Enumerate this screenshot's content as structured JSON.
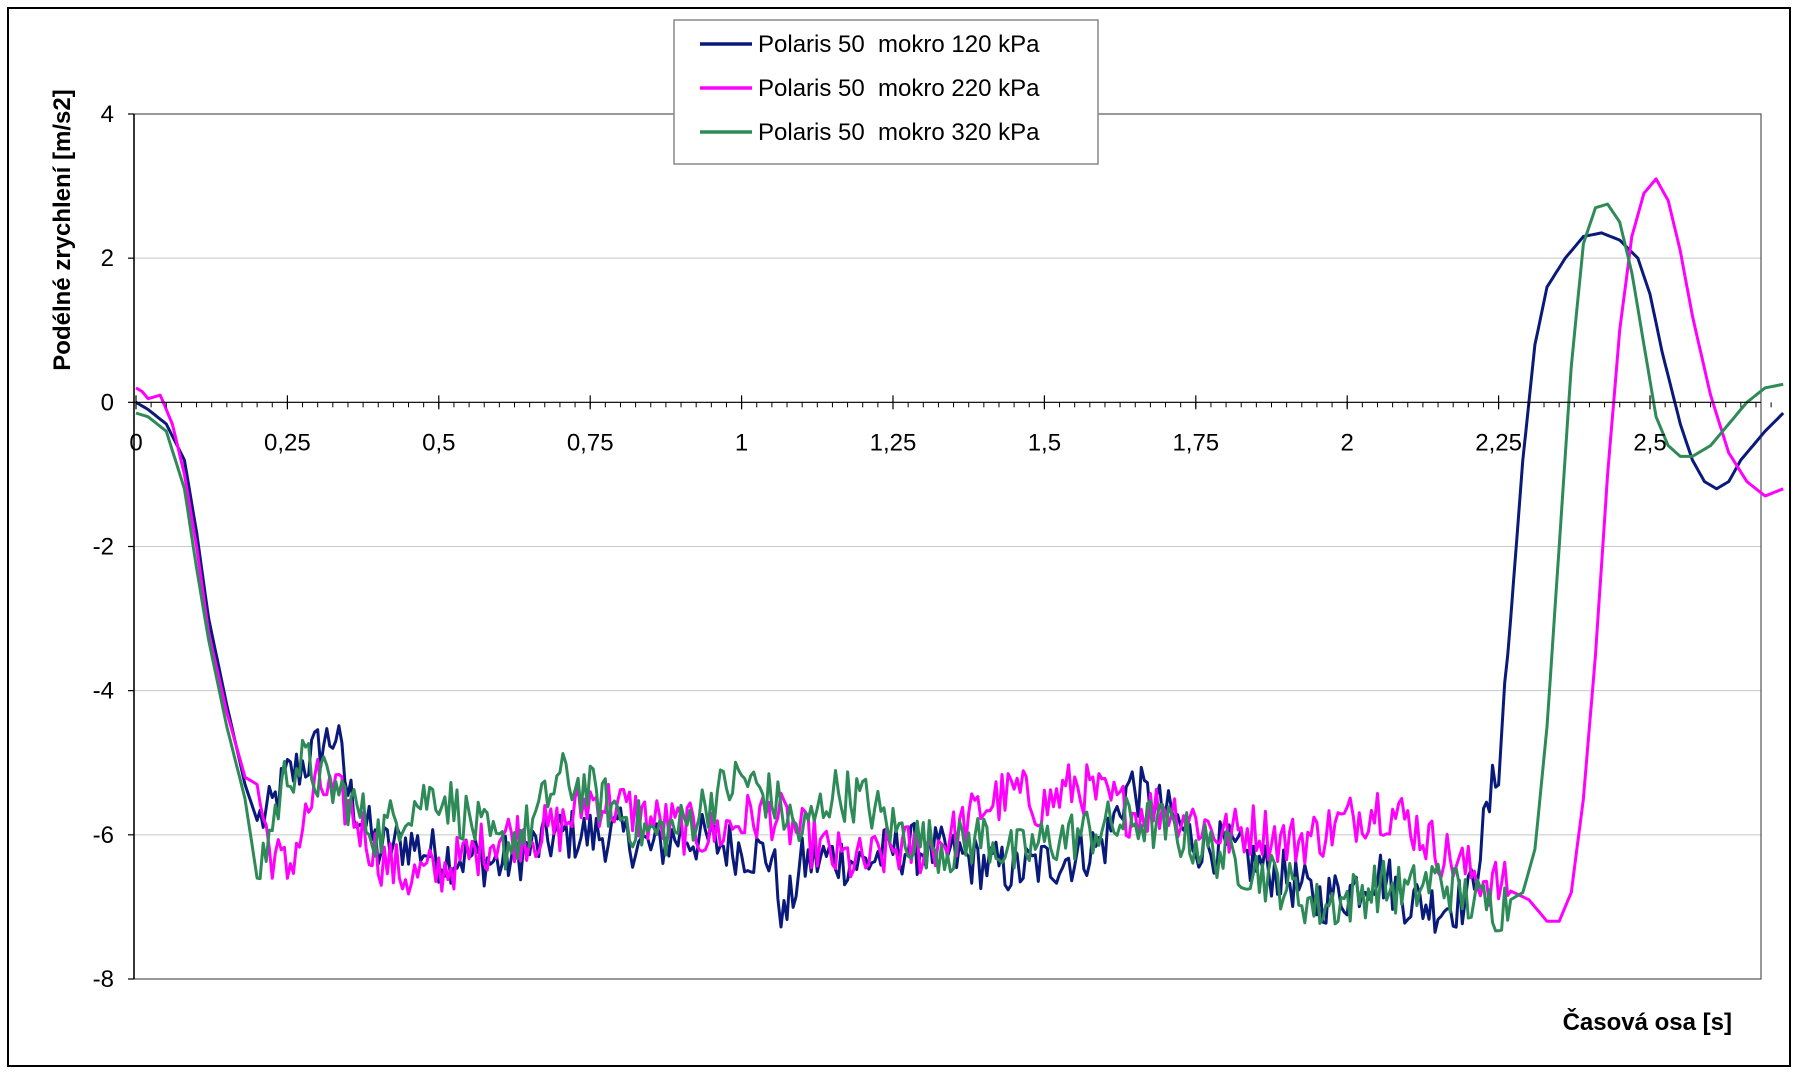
{
  "chart_data": {
    "type": "line",
    "title": "",
    "xlabel": "Časová osa [s]",
    "ylabel": "Podélné zrychlení  [m/s2]",
    "xlim": [
      0,
      2.7
    ],
    "ylim": [
      -8,
      4
    ],
    "x_ticks": [
      0,
      0.25,
      0.5,
      0.75,
      1,
      1.25,
      1.5,
      1.75,
      2,
      2.25,
      2.5
    ],
    "x_tick_labels": [
      "0",
      "0,25",
      "0,5",
      "0,75",
      "1",
      "1,25",
      "1,5",
      "1,75",
      "2",
      "2,25",
      "2,5"
    ],
    "y_ticks": [
      4,
      2,
      0,
      -2,
      -4,
      -6,
      -8
    ],
    "y_tick_labels": [
      "4",
      "2",
      "0",
      "-2",
      "-4",
      "-6",
      "-8"
    ],
    "grid": "horizontal",
    "legend_position": "top-center",
    "series": [
      {
        "name": "Polaris 50  mokro 120 kPa",
        "color": "#0a1a7a",
        "x": [
          0,
          0.02,
          0.05,
          0.08,
          0.1,
          0.12,
          0.15,
          0.18,
          0.2,
          0.22,
          0.25,
          0.28,
          0.3,
          0.33,
          0.35,
          0.4,
          0.45,
          0.5,
          0.55,
          0.6,
          0.65,
          0.7,
          0.75,
          0.8,
          0.85,
          0.9,
          0.95,
          1.0,
          1.05,
          1.07,
          1.1,
          1.15,
          1.2,
          1.25,
          1.3,
          1.35,
          1.4,
          1.45,
          1.5,
          1.55,
          1.6,
          1.64,
          1.7,
          1.75,
          1.8,
          1.85,
          1.9,
          1.95,
          2.0,
          2.05,
          2.1,
          2.15,
          2.2,
          2.25,
          2.27,
          2.29,
          2.31,
          2.33,
          2.36,
          2.39,
          2.42,
          2.45,
          2.48,
          2.5,
          2.52,
          2.55,
          2.57,
          2.59,
          2.61,
          2.63,
          2.65,
          2.67,
          2.69,
          2.72
        ],
        "y": [
          0,
          -0.1,
          -0.3,
          -0.8,
          -1.8,
          -3.0,
          -4.2,
          -5.3,
          -5.8,
          -5.7,
          -5.2,
          -5.0,
          -4.8,
          -4.6,
          -5.4,
          -6.2,
          -6.1,
          -6.3,
          -6.3,
          -6.4,
          -6.2,
          -6.0,
          -6.0,
          -6.0,
          -6.2,
          -6.0,
          -6.1,
          -6.2,
          -6.3,
          -7.2,
          -6.4,
          -6.3,
          -6.4,
          -6.2,
          -6.2,
          -6.3,
          -6.4,
          -6.5,
          -6.4,
          -6.3,
          -6.1,
          -5.3,
          -5.7,
          -6.1,
          -6.2,
          -6.4,
          -6.6,
          -6.9,
          -6.8,
          -6.5,
          -6.9,
          -7.0,
          -6.9,
          -5.0,
          -3.0,
          -0.8,
          0.8,
          1.6,
          2.0,
          2.3,
          2.35,
          2.25,
          2.0,
          1.5,
          0.7,
          -0.3,
          -0.8,
          -1.1,
          -1.2,
          -1.1,
          -0.8,
          -0.6,
          -0.4,
          -0.15
        ]
      },
      {
        "name": "Polaris 50  mokro 220 kPa",
        "color": "#ff00ff",
        "x": [
          0,
          0.01,
          0.02,
          0.04,
          0.06,
          0.08,
          0.1,
          0.12,
          0.15,
          0.18,
          0.2,
          0.22,
          0.25,
          0.28,
          0.3,
          0.35,
          0.4,
          0.45,
          0.5,
          0.55,
          0.6,
          0.65,
          0.7,
          0.75,
          0.8,
          0.85,
          0.9,
          0.95,
          1.0,
          1.05,
          1.1,
          1.15,
          1.2,
          1.25,
          1.3,
          1.35,
          1.4,
          1.45,
          1.5,
          1.55,
          1.6,
          1.65,
          1.7,
          1.75,
          1.8,
          1.85,
          1.9,
          1.95,
          2.0,
          2.05,
          2.1,
          2.15,
          2.2,
          2.25,
          2.3,
          2.33,
          2.35,
          2.37,
          2.39,
          2.41,
          2.43,
          2.45,
          2.47,
          2.49,
          2.51,
          2.53,
          2.55,
          2.57,
          2.6,
          2.63,
          2.66,
          2.69,
          2.72
        ],
        "y": [
          0.2,
          0.15,
          0.05,
          0.1,
          -0.3,
          -1.0,
          -2.0,
          -3.2,
          -4.3,
          -5.2,
          -5.3,
          -6.2,
          -6.5,
          -5.8,
          -5.3,
          -5.6,
          -6.3,
          -6.6,
          -6.5,
          -6.3,
          -6.0,
          -6.0,
          -5.9,
          -5.5,
          -5.6,
          -5.8,
          -5.9,
          -6.0,
          -5.8,
          -5.7,
          -6.0,
          -6.3,
          -6.4,
          -6.2,
          -6.2,
          -6.0,
          -5.6,
          -5.4,
          -5.6,
          -5.3,
          -5.5,
          -5.7,
          -5.6,
          -5.8,
          -6.0,
          -5.9,
          -6.1,
          -6.0,
          -5.8,
          -5.6,
          -5.8,
          -6.2,
          -6.5,
          -6.7,
          -6.9,
          -7.2,
          -7.2,
          -6.8,
          -5.5,
          -3.5,
          -1.0,
          1.0,
          2.3,
          2.9,
          3.1,
          2.8,
          2.1,
          1.2,
          0.1,
          -0.7,
          -1.1,
          -1.3,
          -1.2
        ]
      },
      {
        "name": "Polaris 50  mokro 320 kPa",
        "color": "#2e8b57",
        "x": [
          0,
          0.02,
          0.05,
          0.08,
          0.1,
          0.12,
          0.15,
          0.18,
          0.2,
          0.22,
          0.25,
          0.28,
          0.3,
          0.35,
          0.4,
          0.45,
          0.5,
          0.55,
          0.6,
          0.65,
          0.7,
          0.75,
          0.8,
          0.85,
          0.9,
          0.95,
          1.0,
          1.05,
          1.1,
          1.15,
          1.2,
          1.25,
          1.3,
          1.35,
          1.4,
          1.45,
          1.5,
          1.55,
          1.6,
          1.65,
          1.7,
          1.75,
          1.8,
          1.85,
          1.9,
          1.95,
          2.0,
          2.05,
          2.1,
          2.15,
          2.2,
          2.25,
          2.29,
          2.31,
          2.33,
          2.35,
          2.37,
          2.39,
          2.41,
          2.43,
          2.45,
          2.47,
          2.49,
          2.51,
          2.53,
          2.55,
          2.57,
          2.6,
          2.63,
          2.66,
          2.69,
          2.72
        ],
        "y": [
          -0.15,
          -0.2,
          -0.4,
          -1.2,
          -2.3,
          -3.3,
          -4.5,
          -5.5,
          -6.6,
          -6.0,
          -5.1,
          -5.0,
          -5.2,
          -5.5,
          -6.0,
          -5.6,
          -5.4,
          -5.8,
          -6.2,
          -5.9,
          -5.2,
          -5.4,
          -5.7,
          -6.0,
          -5.9,
          -5.5,
          -5.2,
          -5.5,
          -6.0,
          -5.4,
          -5.5,
          -5.9,
          -6.1,
          -6.2,
          -6.0,
          -6.3,
          -6.1,
          -6.0,
          -5.9,
          -5.8,
          -5.9,
          -6.1,
          -6.3,
          -6.5,
          -6.7,
          -7.0,
          -6.9,
          -6.7,
          -6.8,
          -6.6,
          -6.9,
          -7.0,
          -6.8,
          -6.2,
          -4.5,
          -2.0,
          0.5,
          2.2,
          2.7,
          2.75,
          2.5,
          1.8,
          0.8,
          -0.2,
          -0.6,
          -0.75,
          -0.75,
          -0.6,
          -0.3,
          0.0,
          0.2,
          0.25
        ]
      }
    ]
  }
}
